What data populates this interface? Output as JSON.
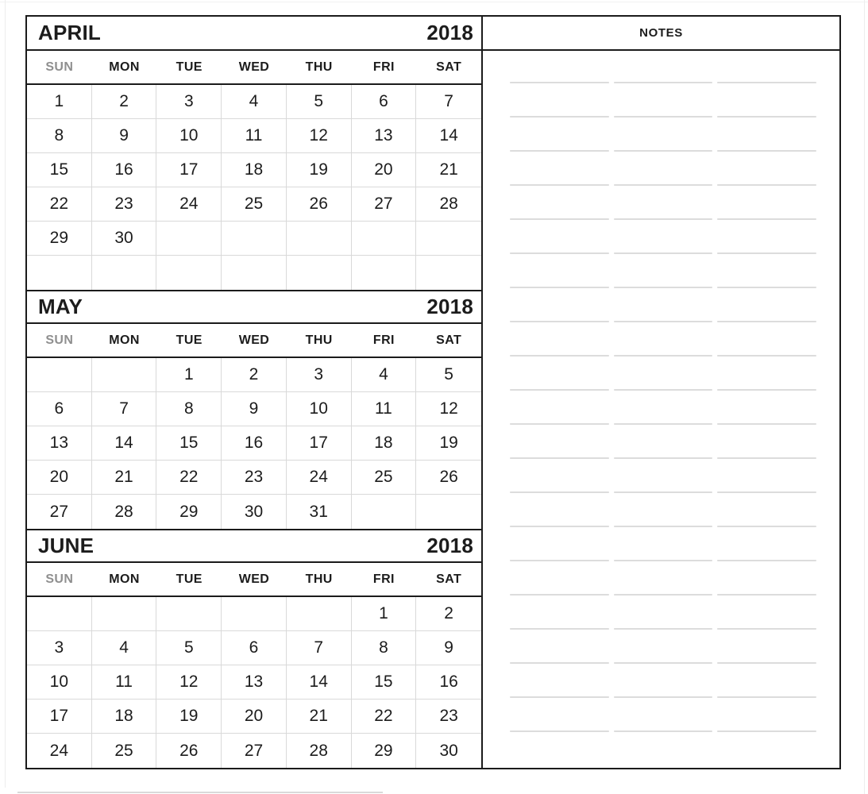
{
  "weekdays": [
    "SUN",
    "MON",
    "TUE",
    "WED",
    "THU",
    "FRI",
    "SAT"
  ],
  "months": [
    {
      "name": "APRIL",
      "year": "2018",
      "rows": [
        [
          "1",
          "2",
          "3",
          "4",
          "5",
          "6",
          "7"
        ],
        [
          "8",
          "9",
          "10",
          "11",
          "12",
          "13",
          "14"
        ],
        [
          "15",
          "16",
          "17",
          "18",
          "19",
          "20",
          "21"
        ],
        [
          "22",
          "23",
          "24",
          "25",
          "26",
          "27",
          "28"
        ],
        [
          "29",
          "30",
          "",
          "",
          "",
          "",
          ""
        ],
        [
          "",
          "",
          "",
          "",
          "",
          "",
          ""
        ]
      ]
    },
    {
      "name": "MAY",
      "year": "2018",
      "rows": [
        [
          "",
          "",
          "1",
          "2",
          "3",
          "4",
          "5"
        ],
        [
          "6",
          "7",
          "8",
          "9",
          "10",
          "11",
          "12"
        ],
        [
          "13",
          "14",
          "15",
          "16",
          "17",
          "18",
          "19"
        ],
        [
          "20",
          "21",
          "22",
          "23",
          "24",
          "25",
          "26"
        ],
        [
          "27",
          "28",
          "29",
          "30",
          "31",
          "",
          ""
        ]
      ]
    },
    {
      "name": "JUNE",
      "year": "2018",
      "rows": [
        [
          "",
          "",
          "",
          "",
          "",
          "1",
          "2"
        ],
        [
          "3",
          "4",
          "5",
          "6",
          "7",
          "8",
          "9"
        ],
        [
          "10",
          "11",
          "12",
          "13",
          "14",
          "15",
          "16"
        ],
        [
          "17",
          "18",
          "19",
          "20",
          "21",
          "22",
          "23"
        ],
        [
          "24",
          "25",
          "26",
          "27",
          "28",
          "29",
          "30"
        ]
      ]
    }
  ],
  "notes": {
    "title": "NOTES",
    "line_count": 20,
    "segments_per_line": 3
  },
  "colors": {
    "border": "#1b1b1b",
    "grid_line": "#d9d9d9",
    "sunday_header": "#8f8f8f",
    "text": "#1c1c1c",
    "notes_line": "#dcdcdc"
  }
}
